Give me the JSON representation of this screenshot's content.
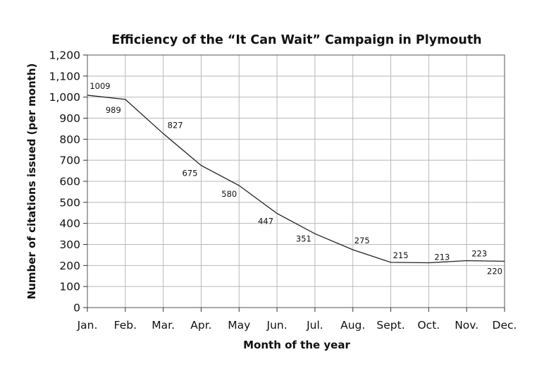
{
  "chart_data": {
    "type": "line",
    "title": "Efficiency of the “It Can Wait” Campaign in Plymouth",
    "xlabel": "Month of the year",
    "ylabel": "Number of citations issued (per month)",
    "categories": [
      "Jan.",
      "Feb.",
      "Mar.",
      "Apr.",
      "May",
      "Jun.",
      "Jul.",
      "Aug.",
      "Sept.",
      "Oct.",
      "Nov.",
      "Dec."
    ],
    "values": [
      1009,
      989,
      827,
      675,
      580,
      447,
      351,
      275,
      215,
      213,
      223,
      220
    ],
    "ylim": [
      0,
      1200
    ],
    "ytick_labels": [
      "0",
      "100",
      "200",
      "300",
      "400",
      "500",
      "600",
      "700",
      "800",
      "900",
      "1,000",
      "1,100",
      "1,200"
    ],
    "grid": true,
    "legend": "none"
  }
}
